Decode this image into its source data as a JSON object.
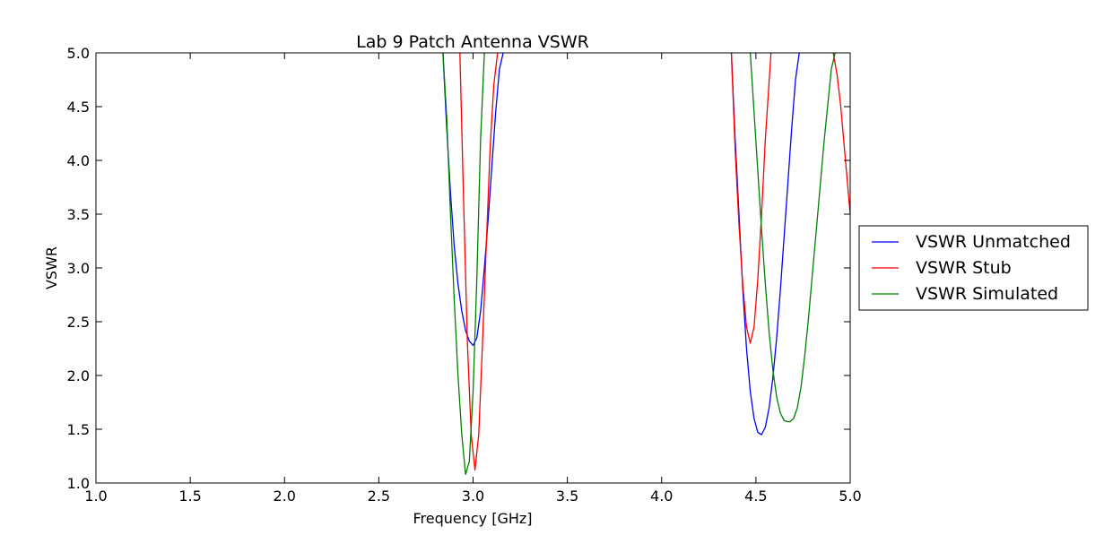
{
  "chart_data": {
    "type": "line",
    "title": "Lab 9 Patch Antenna VSWR",
    "xlabel": "Frequency [GHz]",
    "ylabel": "VSWR",
    "xlim": [
      1.0,
      5.0
    ],
    "ylim": [
      1.0,
      5.0
    ],
    "x_ticks": [
      "1.0",
      "1.5",
      "2.0",
      "2.5",
      "3.0",
      "3.5",
      "4.0",
      "4.5",
      "5.0"
    ],
    "y_ticks": [
      "1.0",
      "1.5",
      "2.0",
      "2.5",
      "3.0",
      "3.5",
      "4.0",
      "4.5",
      "5.0"
    ],
    "grid": false,
    "legend_position": "right",
    "series": [
      {
        "name": "VSWR Unmatched",
        "color": "#0000ff",
        "x": [
          2.84,
          2.86,
          2.88,
          2.9,
          2.92,
          2.94,
          2.96,
          2.98,
          3.0,
          3.02,
          3.04,
          3.06,
          3.08,
          3.1,
          3.12,
          3.14,
          3.16,
          4.37,
          4.39,
          4.41,
          4.43,
          4.45,
          4.47,
          4.49,
          4.51,
          4.53,
          4.55,
          4.57,
          4.59,
          4.61,
          4.63,
          4.65,
          4.67,
          4.69,
          4.71,
          4.73
        ],
        "y": [
          5.0,
          4.3,
          3.7,
          3.2,
          2.85,
          2.6,
          2.42,
          2.32,
          2.28,
          2.35,
          2.6,
          3.0,
          3.45,
          3.95,
          4.45,
          4.85,
          5.0,
          5.0,
          4.2,
          3.5,
          2.8,
          2.25,
          1.85,
          1.6,
          1.47,
          1.45,
          1.52,
          1.7,
          1.98,
          2.35,
          2.8,
          3.3,
          3.8,
          4.3,
          4.75,
          5.0
        ]
      },
      {
        "name": "VSWR Stub",
        "color": "#ff0000",
        "x": [
          2.93,
          2.95,
          2.97,
          2.99,
          3.01,
          3.03,
          3.05,
          3.07,
          3.09,
          3.11,
          3.13,
          4.37,
          4.39,
          4.41,
          4.43,
          4.45,
          4.47,
          4.49,
          4.51,
          4.53,
          4.55,
          4.58,
          4.91,
          4.93,
          4.95,
          4.97,
          5.0
        ],
        "y": [
          5.0,
          3.6,
          2.3,
          1.45,
          1.12,
          1.45,
          2.3,
          3.2,
          4.1,
          4.7,
          5.0,
          5.0,
          4.1,
          3.4,
          2.85,
          2.45,
          2.3,
          2.45,
          2.9,
          3.5,
          4.2,
          5.0,
          5.0,
          4.8,
          4.5,
          4.1,
          3.5
        ]
      },
      {
        "name": "VSWR Simulated",
        "color": "#008000",
        "x": [
          2.84,
          2.86,
          2.88,
          2.9,
          2.92,
          2.94,
          2.96,
          2.98,
          3.0,
          3.02,
          3.04,
          3.06,
          4.47,
          4.49,
          4.51,
          4.53,
          4.55,
          4.57,
          4.59,
          4.61,
          4.63,
          4.65,
          4.67,
          4.68,
          4.7,
          4.72,
          4.74,
          4.76,
          4.78,
          4.8,
          4.82,
          4.84,
          4.86,
          4.88,
          4.9,
          4.92
        ],
        "y": [
          5.0,
          4.4,
          3.5,
          2.7,
          2.0,
          1.45,
          1.08,
          1.2,
          1.85,
          2.9,
          4.2,
          5.0,
          5.0,
          4.45,
          3.9,
          3.35,
          2.85,
          2.4,
          2.05,
          1.8,
          1.65,
          1.58,
          1.57,
          1.57,
          1.6,
          1.7,
          1.9,
          2.2,
          2.55,
          2.95,
          3.35,
          3.75,
          4.15,
          4.5,
          4.85,
          5.0
        ]
      }
    ]
  }
}
